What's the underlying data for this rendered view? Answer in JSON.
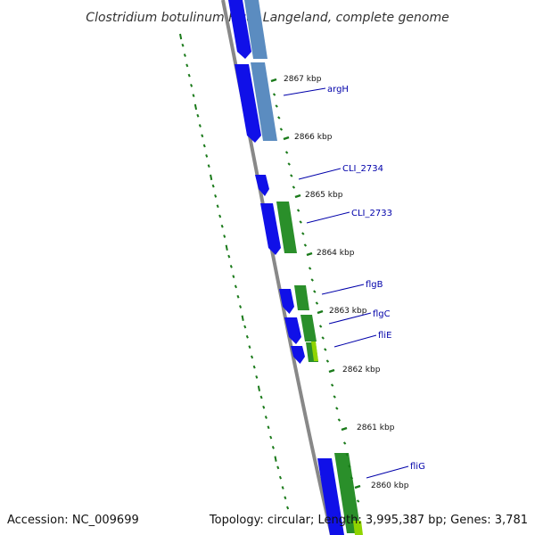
{
  "title": "Clostridium botulinum F str. Langeland, complete genome",
  "footer": {
    "accession": "Accession: NC_009699",
    "summary": "Topology: circular; Length: 3,995,387 bp; Genes: 3,781"
  },
  "ticks": [
    {
      "label": "2867 kbp",
      "kbp": 2867
    },
    {
      "label": "2866 kbp",
      "kbp": 2866
    },
    {
      "label": "2865 kbp",
      "kbp": 2865
    },
    {
      "label": "2864 kbp",
      "kbp": 2864
    },
    {
      "label": "2863 kbp",
      "kbp": 2863
    },
    {
      "label": "2862 kbp",
      "kbp": 2862
    },
    {
      "label": "2861 kbp",
      "kbp": 2861
    },
    {
      "label": "2860 kbp",
      "kbp": 2860
    }
  ],
  "genes": [
    {
      "label": "argH",
      "strand": "reverse"
    },
    {
      "label": "CLI_2734",
      "strand": "reverse"
    },
    {
      "label": "CLI_2733",
      "strand": "reverse"
    },
    {
      "label": "flgB",
      "strand": "reverse"
    },
    {
      "label": "flgC",
      "strand": "reverse"
    },
    {
      "label": "fliE",
      "strand": "reverse"
    },
    {
      "label": "fliG",
      "strand": "reverse"
    }
  ],
  "colors": {
    "cds": "#1010e8",
    "cds_shadow": "#0000a0",
    "rna_blue": "#5b8cc0",
    "rna_green": "#2a8f2a",
    "rna_lightgreen": "#8fd400",
    "backbone": "#888888",
    "tick": "#1a7a1a",
    "label_line": "#0000aa"
  }
}
